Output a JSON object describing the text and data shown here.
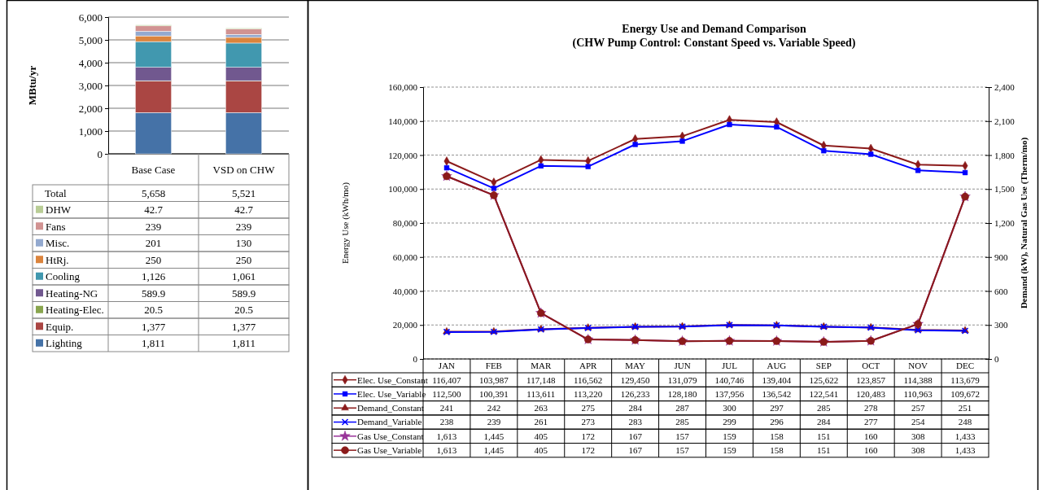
{
  "chart_data": [
    {
      "type": "bar",
      "stacked": true,
      "ylabel": "MBtu/yr",
      "categories": [
        "Base Case",
        "VSD on CHW"
      ],
      "ylim": [
        0,
        6000
      ],
      "yticks": [
        0,
        {
          "value": 1000,
          "label": "1,000"
        },
        {
          "value": 2000,
          "label": "2,000"
        },
        {
          "value": 3000,
          "label": "3,000"
        },
        {
          "value": 4000,
          "label": "4,000"
        },
        {
          "value": 5000,
          "label": "5,000"
        },
        {
          "value": 6000,
          "label": "6,000"
        }
      ],
      "grid": "y",
      "legend": "bottom",
      "totals": [
        "5,658",
        "5,521"
      ],
      "annotations": [
        "Total"
      ],
      "series": [
        {
          "name": "Lighting",
          "color": "#4572a7",
          "values": [
            1811,
            1811
          ],
          "value_labels": [
            "1,811",
            "1,811"
          ]
        },
        {
          "name": "Equip.",
          "color": "#aa4643",
          "values": [
            1377,
            1377
          ],
          "value_labels": [
            "1,377",
            "1,377"
          ]
        },
        {
          "name": "Heating-Elec.",
          "color": "#89a54e",
          "values": [
            20.5,
            20.5
          ],
          "value_labels": [
            "20.5",
            "20.5"
          ]
        },
        {
          "name": "Heating-NG",
          "color": "#71588f",
          "values": [
            589.9,
            589.9
          ],
          "value_labels": [
            "589.9",
            "589.9"
          ]
        },
        {
          "name": "Cooling",
          "color": "#4198af",
          "values": [
            1126,
            1061
          ],
          "value_labels": [
            "1,126",
            "1,061"
          ]
        },
        {
          "name": "HtRj.",
          "color": "#db843d",
          "values": [
            250,
            250
          ],
          "value_labels": [
            "250",
            "250"
          ]
        },
        {
          "name": "Misc.",
          "color": "#93a9cf",
          "values": [
            201,
            130
          ],
          "value_labels": [
            "201",
            "130"
          ]
        },
        {
          "name": "Fans",
          "color": "#d19392",
          "values": [
            239,
            239
          ],
          "value_labels": [
            "239",
            "239"
          ]
        },
        {
          "name": "DHW",
          "color": "#b9cd96",
          "values": [
            42.7,
            42.7
          ],
          "value_labels": [
            "42.7",
            "42.7"
          ]
        }
      ]
    },
    {
      "type": "line",
      "title": "Energy Use and Demand Comparison",
      "subtitle": "(CHW Pump Control: Constant Speed vs. Variable Speed)",
      "ylabel": "Energy Use (kWh/mo)",
      "y2label": "Demand (kW), Natural Gas Use (Therm/mo)",
      "categories": [
        "JAN",
        "FEB",
        "MAR",
        "APR",
        "MAY",
        "JUN",
        "JUL",
        "AUG",
        "SEP",
        "OCT",
        "NOV",
        "DEC"
      ],
      "ylim": [
        0,
        160000
      ],
      "yticks": [
        0,
        {
          "value": 20000,
          "label": "20,000"
        },
        {
          "value": 40000,
          "label": "40,000"
        },
        {
          "value": 60000,
          "label": "60,000"
        },
        {
          "value": 80000,
          "label": "80,000"
        },
        {
          "value": 100000,
          "label": "100,000"
        },
        {
          "value": 120000,
          "label": "120,000"
        },
        {
          "value": 140000,
          "label": "140,000"
        },
        {
          "value": 160000,
          "label": "160,000"
        }
      ],
      "y2lim": [
        0,
        2400
      ],
      "y2ticks": [
        0,
        300,
        600,
        900,
        {
          "value": 1200,
          "label": "1,200"
        },
        {
          "value": 1500,
          "label": "1,500"
        },
        {
          "value": 1800,
          "label": "1,800"
        },
        {
          "value": 2100,
          "label": "2,100"
        },
        {
          "value": 2400,
          "label": "2,400"
        }
      ],
      "grid": "y",
      "legend": "bottom",
      "line_style": "solid",
      "series": [
        {
          "name": "Elec. Use_Constant",
          "color": "#8b1a1a",
          "marker": "diamond",
          "values": [
            116407,
            103987,
            117148,
            116562,
            129450,
            131079,
            140746,
            139404,
            125622,
            123857,
            114388,
            113679
          ],
          "value_labels": [
            "116,407",
            "103,987",
            "117,148",
            "116,562",
            "129,450",
            "131,079",
            "140,746",
            "139,404",
            "125,622",
            "123,857",
            "114,388",
            "113,679"
          ]
        },
        {
          "name": "Elec. Use_Variable",
          "color": "#0000ff",
          "marker": "square",
          "values": [
            112500,
            100391,
            113611,
            113220,
            126233,
            128180,
            137956,
            136542,
            122541,
            120483,
            110963,
            109672
          ],
          "value_labels": [
            "112,500",
            "100,391",
            "113,611",
            "113,220",
            "126,233",
            "128,180",
            "137,956",
            "136,542",
            "122,541",
            "120,483",
            "110,963",
            "109,672"
          ]
        },
        {
          "name": "Demand_Constant",
          "color": "#8b1a1a",
          "marker": "triangle",
          "axis": "y2",
          "values": [
            241,
            242,
            263,
            275,
            284,
            287,
            300,
            297,
            285,
            278,
            257,
            251
          ],
          "value_labels": [
            "241",
            "242",
            "263",
            "275",
            "284",
            "287",
            "300",
            "297",
            "285",
            "278",
            "257",
            "251"
          ]
        },
        {
          "name": "Demand_Variable",
          "color": "#0000ff",
          "marker": "cross",
          "axis": "y2",
          "values": [
            238,
            239,
            261,
            273,
            283,
            285,
            299,
            296,
            284,
            277,
            254,
            248
          ],
          "value_labels": [
            "238",
            "239",
            "261",
            "273",
            "283",
            "285",
            "299",
            "296",
            "284",
            "277",
            "254",
            "248"
          ]
        },
        {
          "name": "Gas Use_Constant",
          "color": "#993399",
          "marker": "star",
          "axis": "y2",
          "values": [
            1613,
            1445,
            405,
            172,
            167,
            157,
            159,
            158,
            151,
            160,
            308,
            1433
          ],
          "value_labels": [
            "1,613",
            "1,445",
            "405",
            "172",
            "167",
            "157",
            "159",
            "158",
            "151",
            "160",
            "308",
            "1,433"
          ]
        },
        {
          "name": "Gas Use_Variable",
          "color": "#8b1a1a",
          "marker": "circle",
          "axis": "y2",
          "values": [
            1613,
            1445,
            405,
            172,
            167,
            157,
            159,
            158,
            151,
            160,
            308,
            1433
          ],
          "value_labels": [
            "1,613",
            "1,445",
            "405",
            "172",
            "167",
            "157",
            "159",
            "158",
            "151",
            "160",
            "308",
            "1,433"
          ]
        }
      ]
    }
  ]
}
